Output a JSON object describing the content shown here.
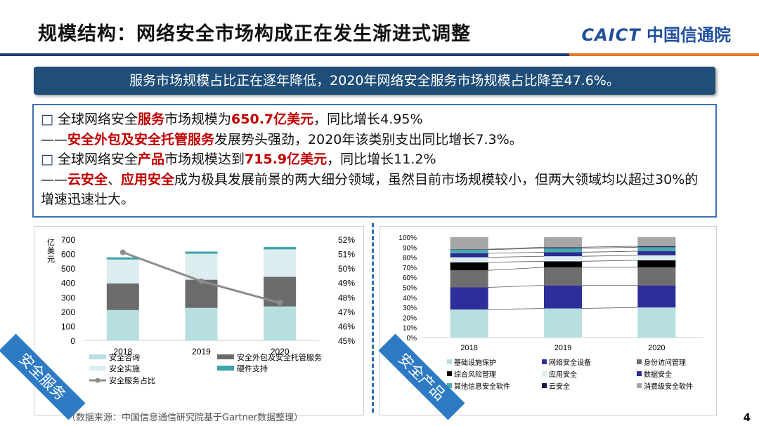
{
  "header": {
    "title": "规模结构：网络安全市场构成正在发生渐进式调整",
    "logo_en": "CAICT",
    "logo_cn": "中国信通院"
  },
  "banner": "服务市场规模占比正在逐年降低，2020年网络安全服务市场规模占比降至47.6%。",
  "bullets": {
    "b1": {
      "a": "全球网络安全",
      "b": "服务",
      "c": "市场规模为",
      "d": "650.7亿美元",
      "e": "，同比增长4.95%"
    },
    "b2": {
      "a": "——",
      "b": "安全外包及安全托管服务",
      "c": "发展势头强劲，2020年该类别支出同比增长7.3%。"
    },
    "b3": {
      "a": "全球网络安全",
      "b": "产品",
      "c": "市场规模达到",
      "d": "715.9亿美元",
      "e": "，同比增长11.2%"
    },
    "b4": {
      "a": "——",
      "b": "云安全",
      "c": "、",
      "d": "应用安全",
      "e": "成为极具发展前景的两大细分领域，虽然目前市场规模较小，但两大领域均以超过30%的增速迅速壮大。"
    }
  },
  "tags": {
    "left": "安全服务",
    "right": "安全产品"
  },
  "source": "（数据来源：中国信息通信研究院基于Gartner数据整理）",
  "page_number": "4",
  "chart_data": [
    {
      "type": "bar",
      "stacked": true,
      "categories": [
        "2018",
        "2019",
        "2020"
      ],
      "ylabel": "亿美元",
      "ylim": [
        0,
        700
      ],
      "yticks": [
        "0",
        "100",
        "200",
        "300",
        "400",
        "500",
        "600",
        "700"
      ],
      "y2lim": [
        45,
        52
      ],
      "y2ticks": [
        "45%",
        "46%",
        "47%",
        "48%",
        "49%",
        "50%",
        "51%",
        "52%"
      ],
      "series": [
        {
          "name": "安全咨询",
          "color": "#b7dfe0",
          "values": [
            210,
            225,
            235
          ]
        },
        {
          "name": "安全外包及安全托管服务",
          "color": "#6b6b6b",
          "values": [
            185,
            195,
            205
          ]
        },
        {
          "name": "安全实施",
          "color": "#dcedf0",
          "values": [
            165,
            180,
            190
          ]
        },
        {
          "name": "硬件支持",
          "color": "#3aa5aa",
          "values": [
            15,
            15,
            16
          ]
        }
      ],
      "line": {
        "name": "安全服务占比",
        "color": "#8c8c8c",
        "values": [
          51.1,
          49.1,
          47.6
        ]
      }
    },
    {
      "type": "bar",
      "stacked": true,
      "percent": true,
      "categories": [
        "2018",
        "2019",
        "2020"
      ],
      "ylim": [
        0,
        100
      ],
      "yticks": [
        "0%",
        "10%",
        "20%",
        "30%",
        "40%",
        "50%",
        "60%",
        "70%",
        "80%",
        "90%",
        "100%"
      ],
      "series": [
        {
          "name": "基础设施保护",
          "color": "#b7dfe0",
          "values": [
            28,
            29,
            30
          ]
        },
        {
          "name": "网络安全设备",
          "color": "#2e2e9a",
          "values": [
            22,
            23,
            22
          ]
        },
        {
          "name": "身份访问管理",
          "color": "#6e6e6e",
          "values": [
            17,
            18,
            18
          ]
        },
        {
          "name": "综合风险管理",
          "color": "#000000",
          "values": [
            8,
            6,
            7
          ]
        },
        {
          "name": "应用安全",
          "color": "#dcedf0",
          "values": [
            5,
            5,
            5
          ]
        },
        {
          "name": "数据安全",
          "color": "#2b2b90",
          "values": [
            4,
            4,
            4
          ]
        },
        {
          "name": "其他信息安全软件",
          "color": "#48a9ad",
          "values": [
            3.5,
            4,
            4
          ]
        },
        {
          "name": "云安全",
          "color": "#1a1a50",
          "values": [
            0.5,
            1,
            1
          ]
        },
        {
          "name": "消费级安全软件",
          "color": "#a6a6a6",
          "values": [
            12,
            10,
            9
          ]
        }
      ]
    }
  ]
}
